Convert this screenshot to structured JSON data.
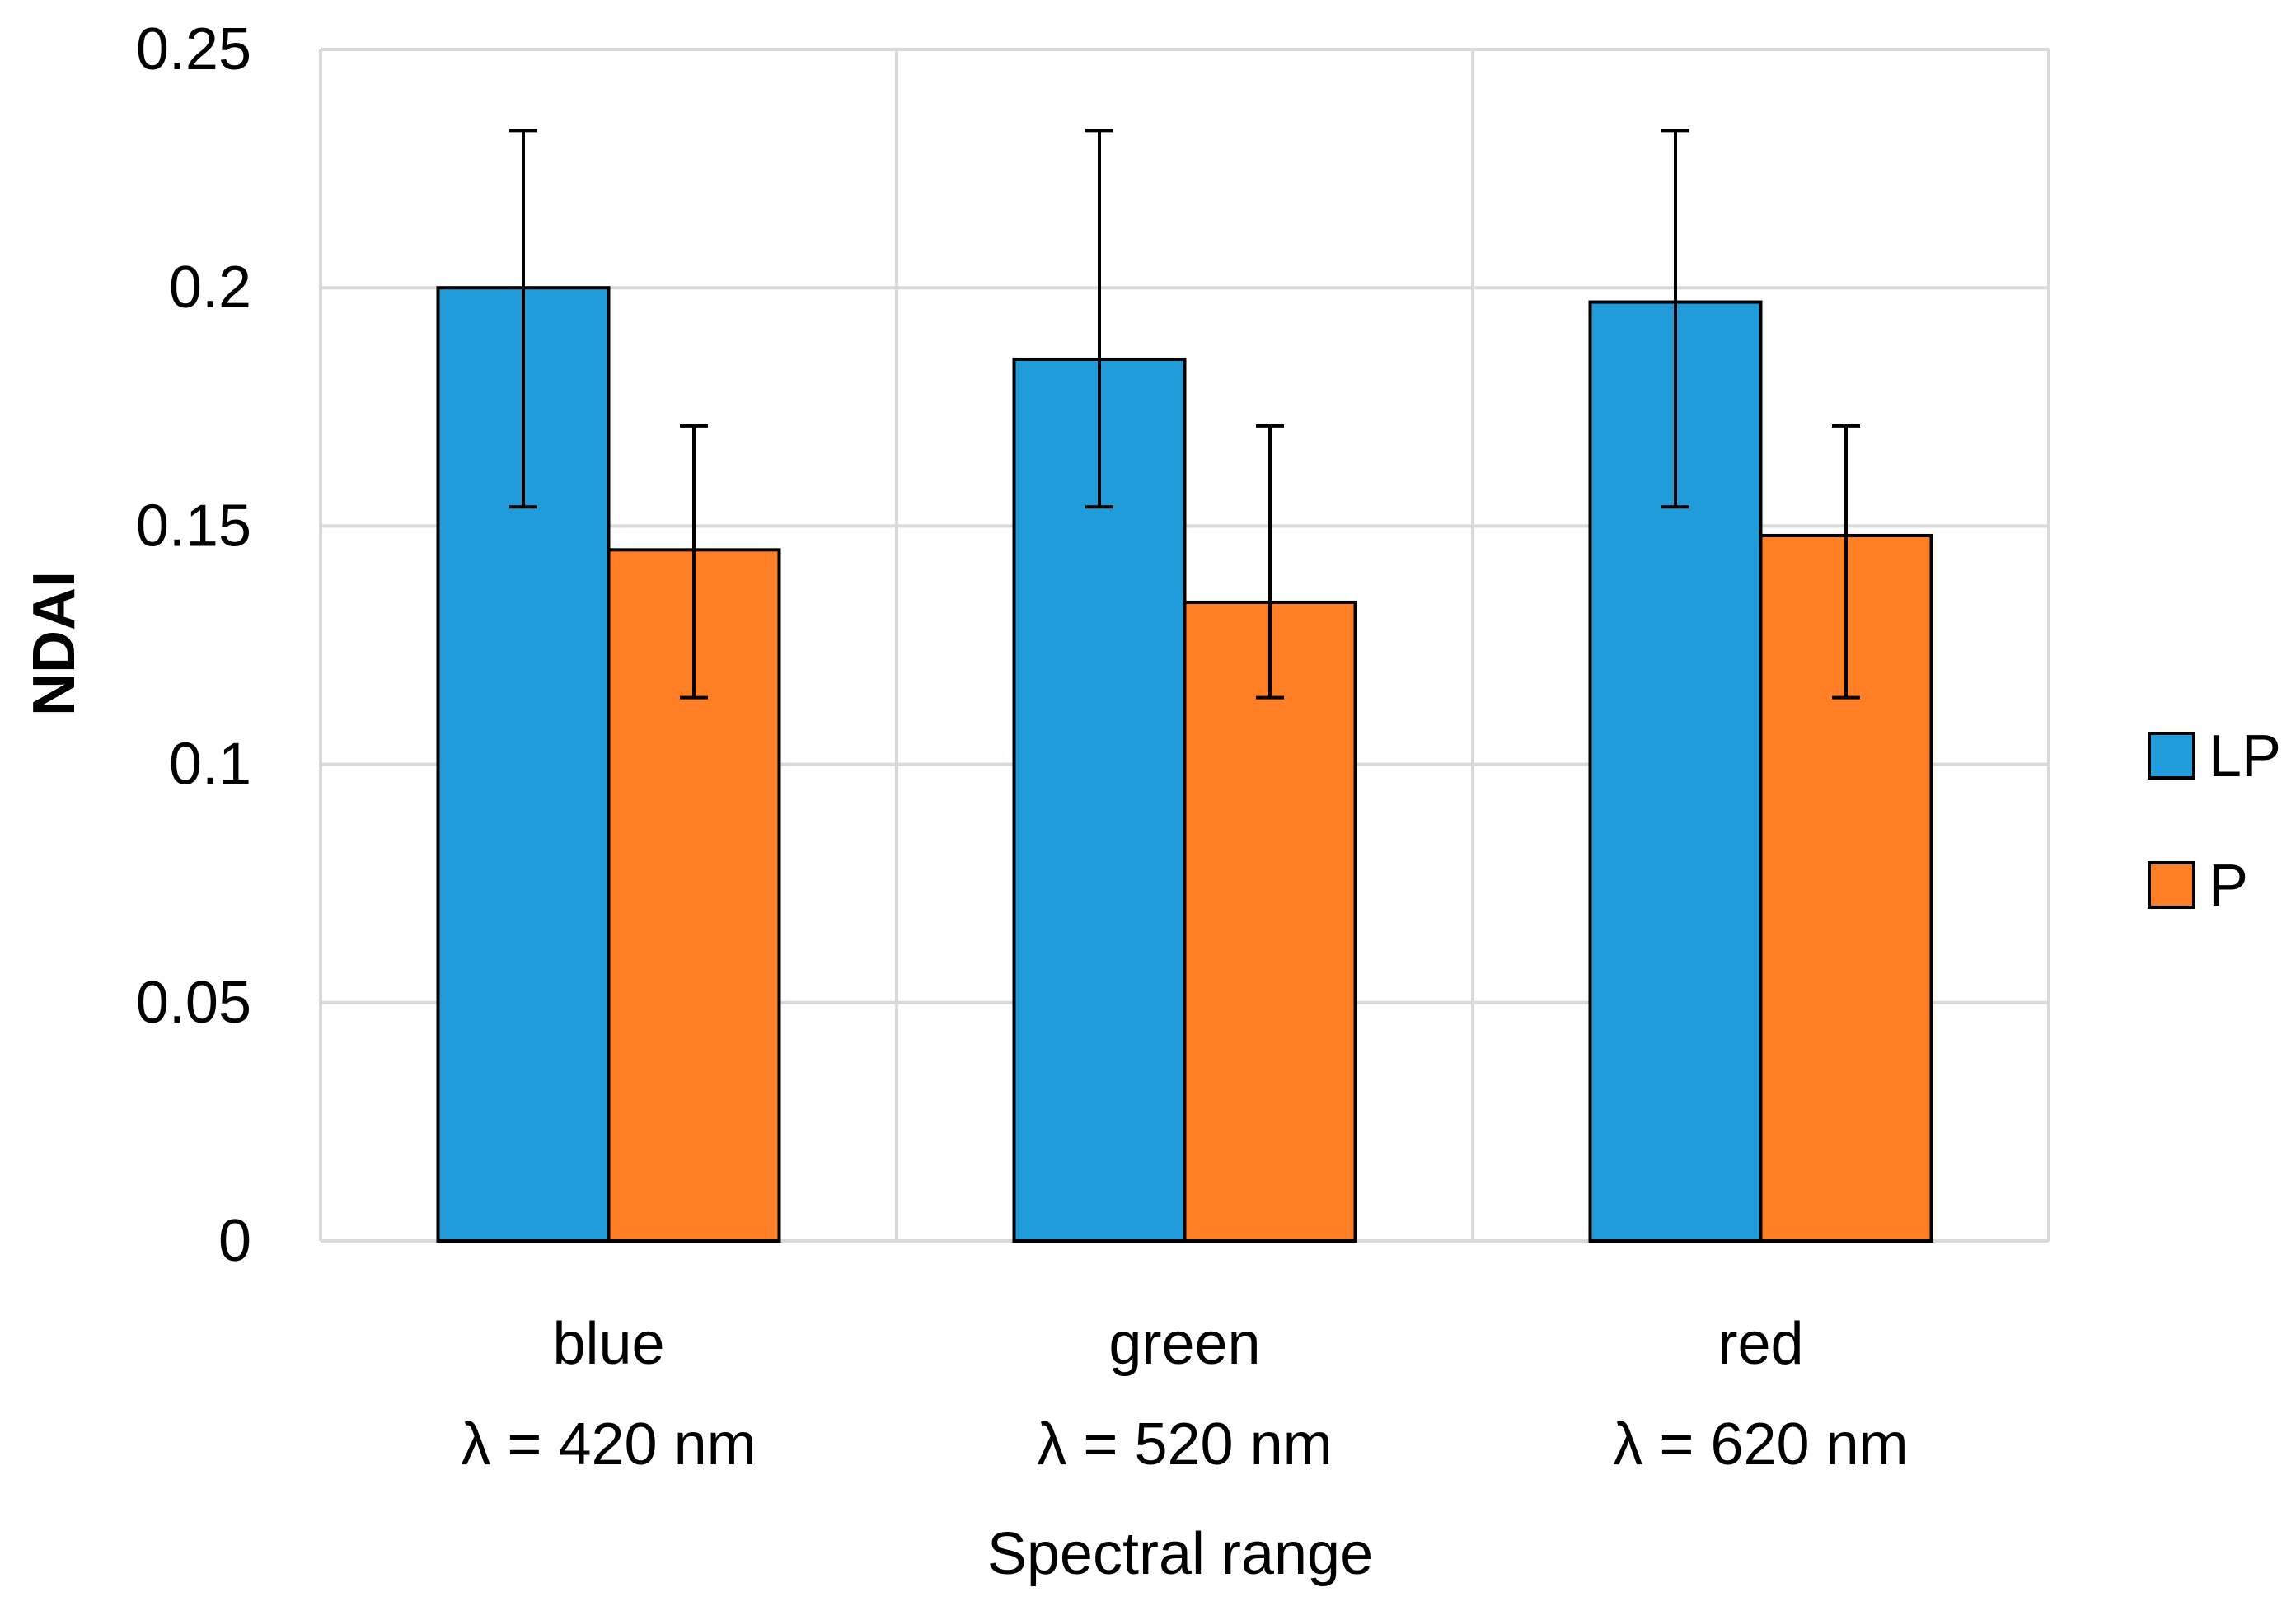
{
  "chart_data": {
    "type": "bar",
    "title": "",
    "xlabel": "Spectral range",
    "ylabel": "NDAI",
    "ylim": [
      0,
      0.25
    ],
    "yticks": [
      "0",
      "0.05",
      "0.1",
      "0.15",
      "0.2",
      "0.25"
    ],
    "ytick_values": [
      0,
      0.05,
      0.1,
      0.15,
      0.2,
      0.25
    ],
    "grid": true,
    "legend_position": "right",
    "categories": [
      {
        "name": "blue",
        "sub": "λ = 420 nm"
      },
      {
        "name": "green",
        "sub": "λ = 520 nm"
      },
      {
        "name": "red",
        "sub": "λ = 620 nm"
      }
    ],
    "series": [
      {
        "name": "LP",
        "color": "#1F9CD9",
        "values": [
          0.2,
          0.185,
          0.197
        ],
        "err_low": [
          0.154,
          0.154,
          0.154
        ],
        "err_high": [
          0.233,
          0.233,
          0.233
        ]
      },
      {
        "name": "P",
        "color": "#FF7F27",
        "values": [
          0.145,
          0.134,
          0.148
        ],
        "err_low": [
          0.114,
          0.114,
          0.114
        ],
        "err_high": [
          0.171,
          0.171,
          0.171
        ]
      }
    ]
  }
}
